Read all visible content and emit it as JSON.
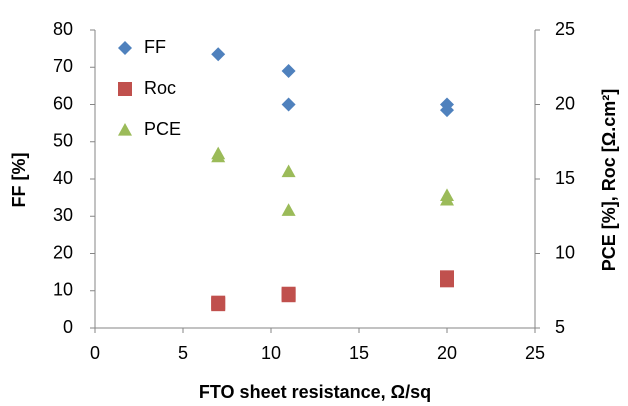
{
  "chart_data": {
    "type": "scatter",
    "xlabel": "FTO sheet resistance, Ω/sq",
    "ylabel": "FF [%]",
    "y2label": "PCE [%], Roc [Ω.cm²]",
    "xlim": [
      0,
      25
    ],
    "xticks": [
      0,
      5,
      10,
      15,
      20,
      25
    ],
    "ylim": [
      0,
      80
    ],
    "yticks": [
      0,
      10,
      20,
      30,
      40,
      50,
      60,
      70,
      80
    ],
    "y2lim": [
      5,
      25
    ],
    "y2ticks": [
      5,
      10,
      15,
      20,
      25
    ],
    "grid": false,
    "legend": "top-left",
    "series": [
      {
        "name": "FF",
        "color": "#4f81bd",
        "marker": "diamond",
        "x": [
          7,
          11,
          11,
          20,
          20
        ],
        "values": [
          73.5,
          69,
          60,
          60,
          58.5
        ]
      },
      {
        "name": "Roc",
        "color": "#c0504d",
        "marker": "square",
        "axis": "y2",
        "x": [
          7,
          7,
          11,
          11,
          20,
          20
        ],
        "values": [
          6.6,
          6.7,
          7.2,
          7.3,
          8.2,
          8.4
        ]
      },
      {
        "name": "PCE",
        "color": "#9bbb59",
        "marker": "triangle",
        "axis": "y2",
        "x": [
          7,
          7,
          11,
          11,
          20,
          20
        ],
        "values": [
          16.7,
          16.5,
          15.5,
          12.9,
          13.9,
          13.6
        ]
      }
    ]
  }
}
